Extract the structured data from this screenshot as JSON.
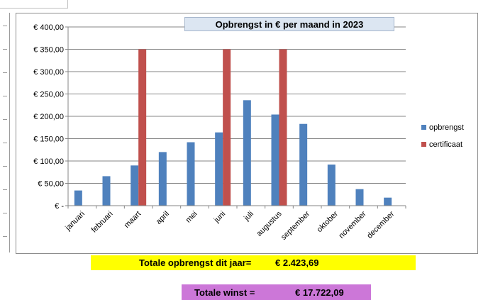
{
  "chart_data": {
    "type": "bar",
    "title": "Opbrengst in € per maand in 2023",
    "categories": [
      "januari",
      "februari",
      "maart",
      "april",
      "mei",
      "juni",
      "juli",
      "augustus",
      "september",
      "oktober",
      "november",
      "december"
    ],
    "series": [
      {
        "name": "opbrengst",
        "color": "#4f81bd",
        "values": [
          34,
          66,
          90,
          120,
          142,
          164,
          236,
          204,
          183,
          92,
          37,
          18
        ]
      },
      {
        "name": "certificaat",
        "color": "#c0504d",
        "values": [
          null,
          null,
          350,
          null,
          null,
          350,
          null,
          350,
          null,
          null,
          null,
          null
        ]
      }
    ],
    "ylim": [
      0,
      400
    ],
    "y_ticks": [
      {
        "value": 0,
        "label": "€ -"
      },
      {
        "value": 50,
        "label": "€ 50,00"
      },
      {
        "value": 100,
        "label": "€ 100,00"
      },
      {
        "value": 150,
        "label": "€ 150,00"
      },
      {
        "value": 200,
        "label": "€ 200,00"
      },
      {
        "value": 250,
        "label": "€ 250,00"
      },
      {
        "value": 300,
        "label": "€ 300,00"
      },
      {
        "value": 350,
        "label": "€ 350,00"
      },
      {
        "value": 400,
        "label": "€ 400,00"
      }
    ],
    "grid": true,
    "legend_position": "right"
  },
  "totals": {
    "revenue_label": "Totale opbrengst dit jaar=",
    "revenue_value": "€ 2.423,69",
    "profit_label": "Totale winst =",
    "profit_value": "€ 17.722,09"
  }
}
